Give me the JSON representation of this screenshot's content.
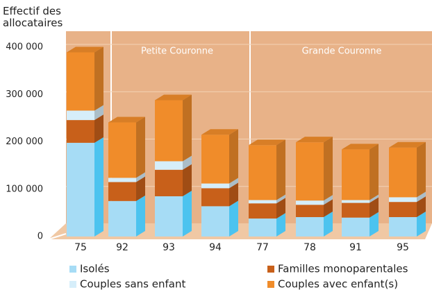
{
  "chart_data": {
    "type": "bar",
    "y_label": "Effectif des allocataires",
    "annotations": [
      "Petite Couronne",
      "Grande Couronne"
    ],
    "categories": [
      "75",
      "92",
      "93",
      "94",
      "77",
      "78",
      "91",
      "95"
    ],
    "series": [
      {
        "name": "Isolés",
        "color": "#a6dcf5",
        "values": [
          198000,
          75000,
          85000,
          64000,
          38000,
          41000,
          40000,
          41000
        ]
      },
      {
        "name": "Familles monoparentales",
        "color": "#c8601a",
        "values": [
          48000,
          40000,
          56000,
          38000,
          32000,
          26000,
          31000,
          32000
        ]
      },
      {
        "name": "Couples sans enfant",
        "color": "#d6eefa",
        "values": [
          20000,
          9000,
          18000,
          10000,
          7000,
          9000,
          6000,
          10000
        ]
      },
      {
        "name": "Couples avec enfant(s)",
        "color": "#f08c2a",
        "values": [
          123000,
          117000,
          129000,
          103000,
          116000,
          123000,
          107000,
          105000
        ]
      }
    ],
    "stacked": true,
    "ylim": [
      0,
      400000
    ],
    "yticks": [
      0,
      {
        "value": 100000,
        "label": "100 000"
      },
      {
        "value": 200000,
        "label": "200 000"
      },
      {
        "value": 300000,
        "label": "300 000"
      },
      {
        "value": 400000,
        "label": "400 000"
      }
    ],
    "grid": true
  }
}
